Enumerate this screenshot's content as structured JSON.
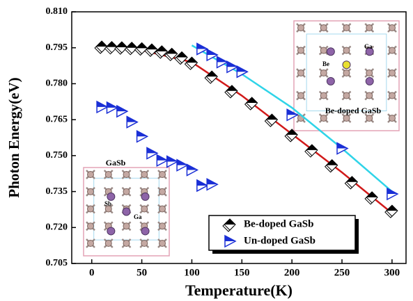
{
  "chart_data": {
    "type": "scatter",
    "xlabel": "Temperature(K)",
    "ylabel": "Photon Energy(eV)",
    "xlim": [
      -20,
      314
    ],
    "ylim": [
      0.705,
      0.81
    ],
    "xticks": [
      0,
      50,
      100,
      150,
      200,
      250,
      300
    ],
    "yticks": [
      {
        "value": 0.705,
        "label": "0.705"
      },
      {
        "value": 0.72,
        "label": "0.720"
      },
      {
        "value": 0.735,
        "label": "0.735"
      },
      {
        "value": 0.75,
        "label": "0.750"
      },
      {
        "value": 0.765,
        "label": "0.765"
      },
      {
        "value": 0.78,
        "label": "0.780"
      },
      {
        "value": 0.795,
        "label": "0.795"
      },
      {
        "value": 0.81,
        "label": "0.810"
      }
    ],
    "series": [
      {
        "name": "Be-doped GaSb",
        "marker": "diamond",
        "color": "#000000",
        "x": [
          10,
          20,
          30,
          40,
          50,
          60,
          70,
          80,
          90,
          100,
          120,
          140,
          160,
          180,
          200,
          220,
          240,
          260,
          280,
          300
        ],
        "values": [
          0.7955,
          0.7953,
          0.7952,
          0.795,
          0.7948,
          0.7943,
          0.7935,
          0.7925,
          0.791,
          0.7888,
          0.783,
          0.777,
          0.772,
          0.765,
          0.7587,
          0.7523,
          0.746,
          0.739,
          0.7326,
          0.727
        ]
      },
      {
        "name": "Un-doped GaSb",
        "marker": "triangle-right",
        "color": "#1a2fd6",
        "x": [
          10,
          20,
          30,
          40,
          50,
          60,
          70,
          80,
          90,
          100,
          110,
          120,
          110,
          120,
          130,
          140,
          150,
          200,
          250,
          300
        ],
        "values": [
          0.7703,
          0.77,
          0.7685,
          0.764,
          0.758,
          0.751,
          0.748,
          0.7475,
          0.746,
          0.744,
          0.7375,
          0.738,
          0.7945,
          0.792,
          0.789,
          0.787,
          0.785,
          0.767,
          0.753,
          0.734
        ]
      }
    ],
    "fits": [
      {
        "color": "#d11a1a",
        "x": [
          10,
          50,
          100,
          150,
          200,
          250,
          300
        ],
        "values": [
          0.7955,
          0.794,
          0.789,
          0.775,
          0.759,
          0.743,
          0.726
        ]
      },
      {
        "color": "#2fd4e8",
        "x": [
          100,
          150,
          200,
          250,
          300
        ],
        "values": [
          0.796,
          0.784,
          0.77,
          0.753,
          0.735
        ]
      }
    ],
    "insets": [
      {
        "title": "GaSb",
        "atoms": [
          "Sb",
          "Ga"
        ]
      },
      {
        "title": "Be-doped GaSb",
        "atoms": [
          "Be",
          "Ga"
        ]
      }
    ]
  }
}
